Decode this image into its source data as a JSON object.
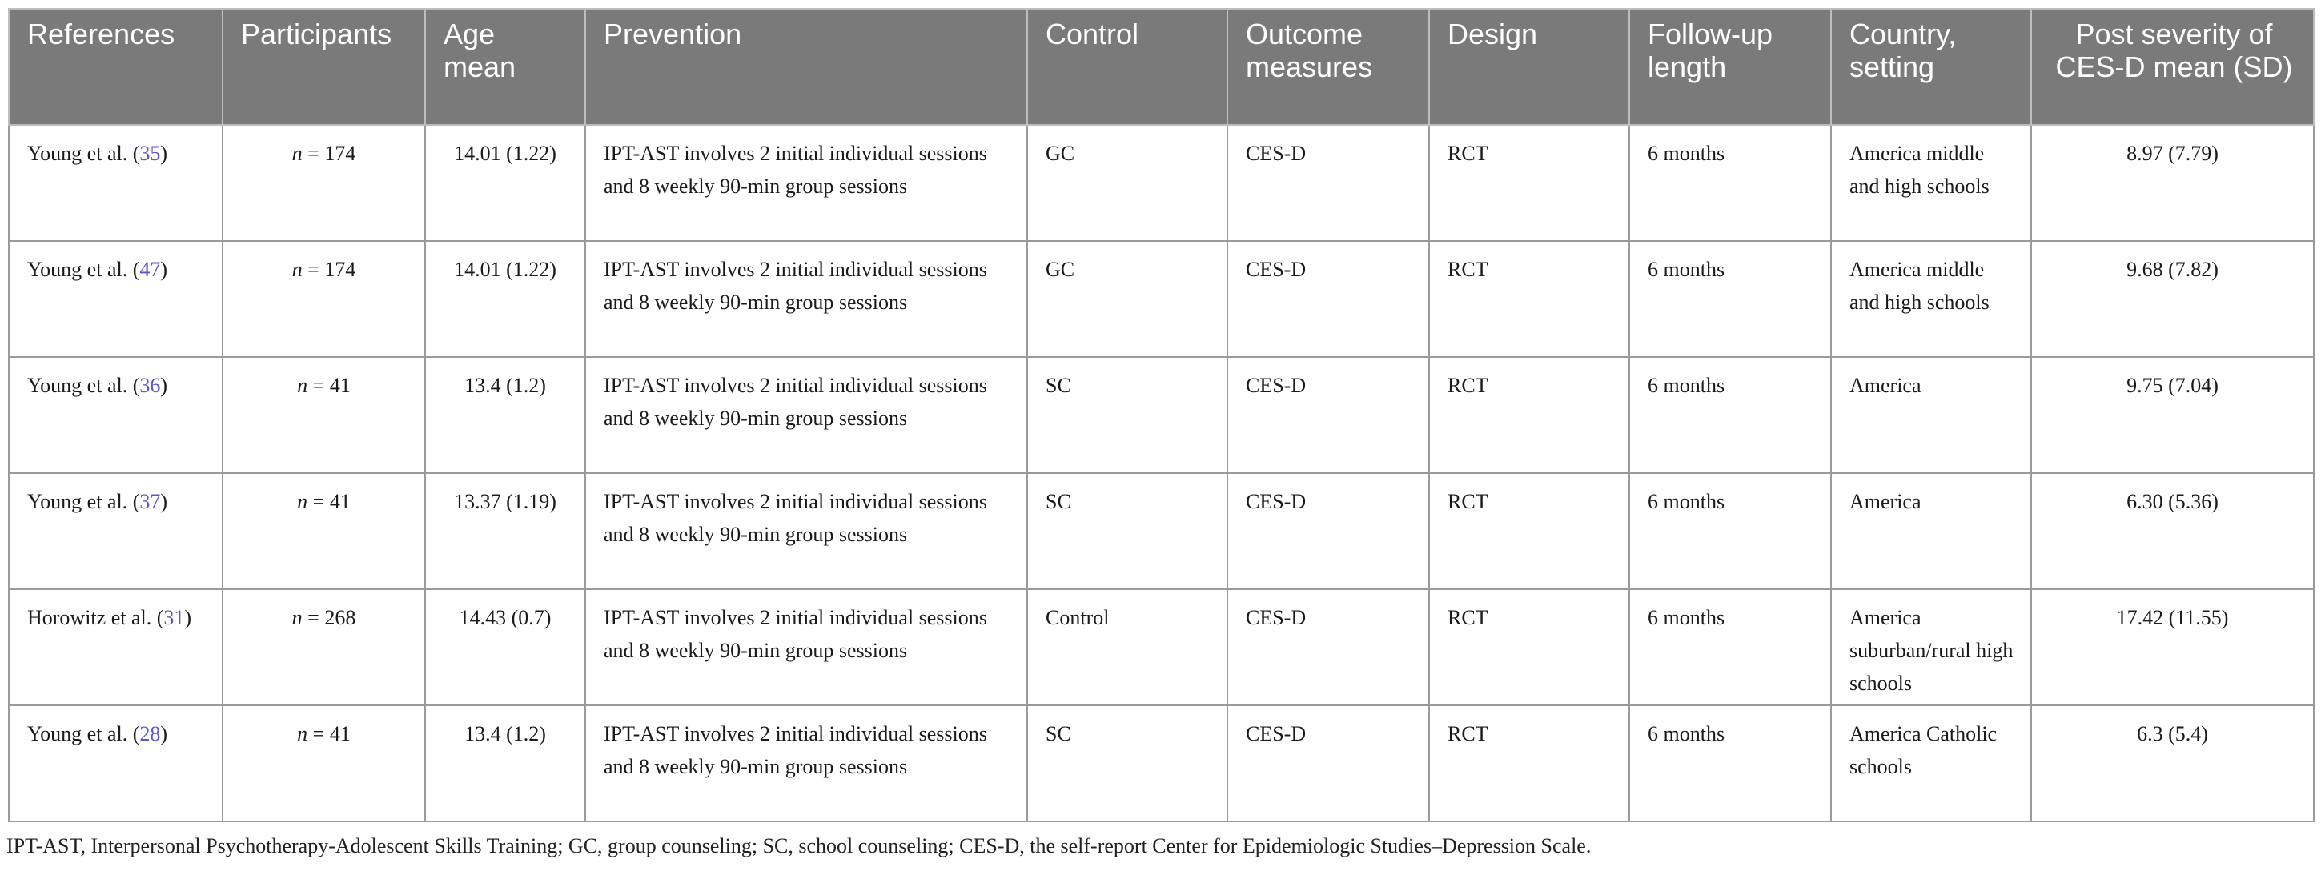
{
  "headers": [
    "References",
    "Participants",
    "Age mean",
    "Prevention",
    "Control",
    "Outcome measures",
    "Design",
    "Follow-up length",
    "Country, setting",
    "Post severity of CES-D mean (SD)"
  ],
  "rows": [
    {
      "ref_author": "Young et al. (",
      "ref_num": "35",
      "ref_close": ")",
      "n_prefix": "n",
      "n_value": " = 174",
      "age": "14.01 (1.22)",
      "prevention": "IPT-AST involves 2 initial individual sessions and 8 weekly 90-min group sessions",
      "control": "GC",
      "outcome": "CES-D",
      "design": "RCT",
      "followup": "6 months",
      "country": "America middle and high schools",
      "severity": "8.97 (7.79)"
    },
    {
      "ref_author": "Young et al. (",
      "ref_num": "47",
      "ref_close": ")",
      "n_prefix": "n",
      "n_value": " = 174",
      "age": "14.01 (1.22)",
      "prevention": "IPT-AST involves 2 initial individual sessions and 8 weekly 90-min group sessions",
      "control": "GC",
      "outcome": "CES-D",
      "design": "RCT",
      "followup": "6 months",
      "country": "America middle and high schools",
      "severity": "9.68 (7.82)"
    },
    {
      "ref_author": "Young et al. (",
      "ref_num": "36",
      "ref_close": ")",
      "n_prefix": "n",
      "n_value": " = 41",
      "age": "13.4 (1.2)",
      "prevention": "IPT-AST involves 2 initial individual sessions and 8 weekly 90-min group sessions",
      "control": "SC",
      "outcome": "CES-D",
      "design": "RCT",
      "followup": "6 months",
      "country": "America",
      "severity": "9.75 (7.04)"
    },
    {
      "ref_author": "Young et al. (",
      "ref_num": "37",
      "ref_close": ")",
      "n_prefix": "n",
      "n_value": " = 41",
      "age": "13.37 (1.19)",
      "prevention": "IPT-AST involves 2 initial individual sessions and 8 weekly 90-min group sessions",
      "control": "SC",
      "outcome": "CES-D",
      "design": "RCT",
      "followup": "6 months",
      "country": "America",
      "severity": "6.30 (5.36)"
    },
    {
      "ref_author": "Horowitz et al. (",
      "ref_num": "31",
      "ref_close": ")",
      "n_prefix": "n",
      "n_value": " = 268",
      "age": "14.43 (0.7)",
      "prevention": "IPT-AST involves 2 initial individual sessions and 8 weekly 90-min group sessions",
      "control": "Control",
      "outcome": "CES-D",
      "design": "RCT",
      "followup": "6 months",
      "country": "America suburban/rural high schools",
      "severity": "17.42 (11.55)"
    },
    {
      "ref_author": "Young et al. (",
      "ref_num": "28",
      "ref_close": ")",
      "n_prefix": "n",
      "n_value": " = 41",
      "age": "13.4 (1.2)",
      "prevention": "IPT-AST involves 2 initial individual sessions and 8 weekly 90-min group sessions",
      "control": "SC",
      "outcome": "CES-D",
      "design": "RCT",
      "followup": "6 months",
      "country": "America Catholic schools",
      "severity": "6.3 (5.4)"
    }
  ],
  "footnote": "IPT-AST, Interpersonal Psychotherapy-Adolescent Skills Training; GC, group counseling; SC, school counseling; CES-D, the self-report Center for Epidemiologic Studies–Depression Scale."
}
